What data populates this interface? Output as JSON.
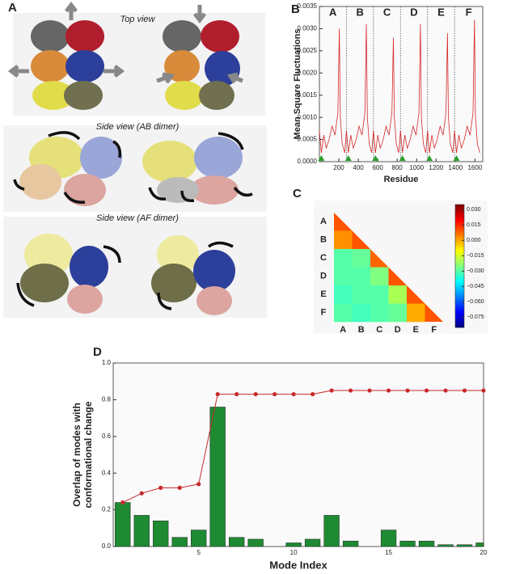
{
  "panel_a": {
    "label": "A",
    "captions": [
      "Top view",
      "Side view (AB dimer)",
      "Side view (AF dimer)"
    ]
  },
  "chart_data": [
    {
      "type": "line",
      "panel_label": "B",
      "x_label": "Residue",
      "y_label": "Mean Square Fluctuations",
      "x": [
        0,
        20,
        45,
        70,
        100,
        130,
        160,
        190,
        205,
        215,
        235,
        260,
        278,
        298,
        323,
        348,
        378,
        408,
        438,
        468,
        483,
        493,
        513,
        538,
        556,
        576,
        601,
        626,
        656,
        686,
        716,
        746,
        761,
        771,
        791,
        816,
        834,
        854,
        879,
        904,
        934,
        964,
        994,
        1024,
        1039,
        1049,
        1069,
        1094,
        1112,
        1132,
        1157,
        1182,
        1212,
        1242,
        1272,
        1302,
        1317,
        1327,
        1347,
        1372,
        1390,
        1410,
        1435,
        1460,
        1490,
        1520,
        1550,
        1580,
        1595,
        1605,
        1625,
        1650
      ],
      "series": [
        {
          "color": "#d62728",
          "values": [
            0.0007,
            0.0002,
            0.0006,
            0.0003,
            0.0005,
            0.0008,
            0.0006,
            0.0011,
            0.003,
            0.001,
            0.0004,
            0.0002,
            0.0007,
            0.0002,
            0.0006,
            0.0003,
            0.0005,
            0.0008,
            0.0006,
            0.0011,
            0.0031,
            0.001,
            0.0004,
            0.0002,
            0.0007,
            0.0002,
            0.0006,
            0.0003,
            0.0005,
            0.0008,
            0.0006,
            0.0011,
            0.0028,
            0.001,
            0.0004,
            0.0002,
            0.0007,
            0.0002,
            0.0006,
            0.0003,
            0.0005,
            0.0008,
            0.0006,
            0.0011,
            0.0031,
            0.001,
            0.0004,
            0.0002,
            0.0007,
            0.0002,
            0.0006,
            0.0003,
            0.0005,
            0.0008,
            0.0006,
            0.0011,
            0.0029,
            0.001,
            0.0004,
            0.0002,
            0.0007,
            0.0002,
            0.0006,
            0.0003,
            0.0005,
            0.0008,
            0.0006,
            0.0011,
            0.0032,
            0.001,
            0.0004,
            0.0002
          ]
        }
      ],
      "segment_boundaries": [
        278,
        556,
        834,
        1112,
        1390
      ],
      "segment_labels": [
        "A",
        "B",
        "C",
        "D",
        "E",
        "F"
      ],
      "marker_x": [
        20,
        298,
        576,
        854,
        1132,
        1410
      ],
      "marker_color": "#2ca02c",
      "xlim": [
        0,
        1680
      ],
      "xticks": [
        200,
        400,
        600,
        800,
        1000,
        1200,
        1400,
        1600
      ],
      "ylim": [
        0,
        0.0035
      ],
      "yticks": [
        {
          "value": 0,
          "label": "0.0000"
        },
        {
          "value": 0.0005,
          "label": "0.0005"
        },
        {
          "value": 0.001,
          "label": "0.0010"
        },
        {
          "value": 0.0015,
          "label": "0.0015"
        },
        {
          "value": 0.002,
          "label": "0.0020"
        },
        {
          "value": 0.0025,
          "label": "0.0025"
        },
        {
          "value": 0.003,
          "label": "0.0030"
        },
        {
          "value": 0.0035,
          "label": "0.0035"
        }
      ]
    },
    {
      "type": "heatmap",
      "panel_label": "C",
      "rows": [
        "A",
        "B",
        "C",
        "D",
        "E",
        "F"
      ],
      "cols": [
        "A",
        "B",
        "C",
        "D",
        "E",
        "F"
      ],
      "values": [
        [
          0.01,
          null,
          null,
          null,
          null,
          null
        ],
        [
          0.003,
          0.01,
          null,
          null,
          null,
          null
        ],
        [
          -0.03,
          -0.028,
          0.008,
          null,
          null,
          null
        ],
        [
          -0.03,
          -0.03,
          -0.025,
          0.01,
          null,
          null
        ],
        [
          -0.032,
          -0.03,
          -0.03,
          -0.02,
          0.01,
          null
        ],
        [
          -0.03,
          -0.032,
          -0.03,
          -0.028,
          0.0,
          0.01
        ]
      ],
      "zlim": [
        -0.085,
        0.035
      ],
      "zticks": [
        {
          "value": 0.03,
          "label": "0.030"
        },
        {
          "value": 0.015,
          "label": "0.015"
        },
        {
          "value": 0,
          "label": "0.000"
        },
        {
          "value": -0.015,
          "label": "−0.015"
        },
        {
          "value": -0.03,
          "label": "−0.030"
        },
        {
          "value": -0.045,
          "label": "−0.045"
        },
        {
          "value": -0.06,
          "label": "−0.060"
        },
        {
          "value": -0.075,
          "label": "−0.075"
        }
      ]
    },
    {
      "type": "combo",
      "panel_label": "D",
      "x_label": "Mode Index",
      "y_label": [
        "Overlap of modes with",
        "conformational change"
      ],
      "x": [
        1,
        2,
        3,
        4,
        5,
        6,
        7,
        8,
        9,
        10,
        11,
        12,
        13,
        14,
        15,
        16,
        17,
        18,
        19,
        20
      ],
      "series": [
        {
          "kind": "bar",
          "color": "#1e8a32",
          "values": [
            0.24,
            0.17,
            0.14,
            0.05,
            0.09,
            0.76,
            0.05,
            0.04,
            0.0,
            0.02,
            0.04,
            0.17,
            0.03,
            0.0,
            0.09,
            0.03,
            0.03,
            0.01,
            0.01,
            0.02
          ]
        },
        {
          "kind": "line",
          "color": "#c8282a",
          "values": [
            0.24,
            0.29,
            0.32,
            0.32,
            0.34,
            0.83,
            0.83,
            0.83,
            0.83,
            0.83,
            0.83,
            0.85,
            0.85,
            0.85,
            0.85,
            0.85,
            0.85,
            0.85,
            0.85,
            0.85
          ]
        }
      ],
      "xlim": [
        0.5,
        20
      ],
      "xticks": [
        5,
        10,
        15,
        20
      ],
      "ylim": [
        0,
        1
      ],
      "yticks": [
        {
          "value": 0,
          "label": "0.0"
        },
        0.2,
        0.4,
        0.6,
        0.8,
        {
          "value": 1,
          "label": "1.0"
        }
      ]
    }
  ]
}
